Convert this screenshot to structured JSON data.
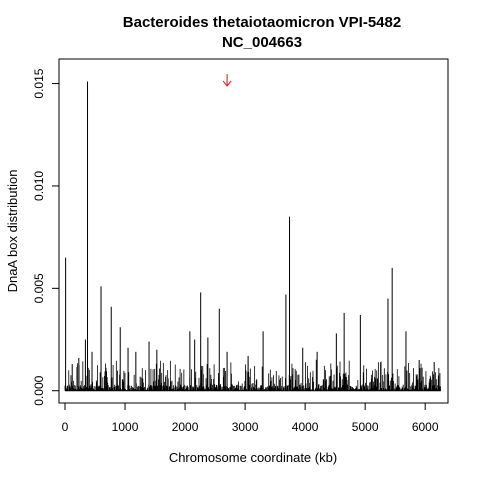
{
  "chart_data": {
    "type": "bar",
    "title": "Bacteroides thetaiotaomicron VPI-5482",
    "subtitle": "NC_004663",
    "xlabel": "Chromosome coordinate (kb)",
    "ylabel": "DnaA box distribution",
    "xlim": [
      -100,
      6380
    ],
    "ylim": [
      -0.0006,
      0.0162
    ],
    "x_ticks": [
      0,
      1000,
      2000,
      3000,
      4000,
      5000,
      6000
    ],
    "x_tick_labels": [
      "0",
      "1000",
      "2000",
      "3000",
      "4000",
      "5000",
      "6000"
    ],
    "y_ticks": [
      0.0,
      0.005,
      0.01,
      0.015
    ],
    "y_tick_labels": [
      "0.000",
      "0.005",
      "0.010",
      "0.015"
    ],
    "grid": false,
    "legend": "none",
    "origin_marker": {
      "x": 2700,
      "color": "#ff0000"
    },
    "spikes": [
      {
        "x": 10,
        "y": 0.0065
      },
      {
        "x": 120,
        "y": 0.0013
      },
      {
        "x": 230,
        "y": 0.0016
      },
      {
        "x": 340,
        "y": 0.0025
      },
      {
        "x": 375,
        "y": 0.0151
      },
      {
        "x": 450,
        "y": 0.0019
      },
      {
        "x": 600,
        "y": 0.0051
      },
      {
        "x": 770,
        "y": 0.0041
      },
      {
        "x": 920,
        "y": 0.0031
      },
      {
        "x": 1050,
        "y": 0.0021
      },
      {
        "x": 1180,
        "y": 0.0019
      },
      {
        "x": 1400,
        "y": 0.0024
      },
      {
        "x": 1530,
        "y": 0.002
      },
      {
        "x": 2080,
        "y": 0.0029
      },
      {
        "x": 2160,
        "y": 0.0025
      },
      {
        "x": 2260,
        "y": 0.0048
      },
      {
        "x": 2380,
        "y": 0.0026
      },
      {
        "x": 2570,
        "y": 0.004
      },
      {
        "x": 2700,
        "y": 0.0019
      },
      {
        "x": 3050,
        "y": 0.0017
      },
      {
        "x": 3300,
        "y": 0.0029
      },
      {
        "x": 3680,
        "y": 0.0047
      },
      {
        "x": 3740,
        "y": 0.0085
      },
      {
        "x": 3960,
        "y": 0.0021
      },
      {
        "x": 4200,
        "y": 0.0019
      },
      {
        "x": 4520,
        "y": 0.0028
      },
      {
        "x": 4650,
        "y": 0.0038
      },
      {
        "x": 4920,
        "y": 0.0037
      },
      {
        "x": 5380,
        "y": 0.0045
      },
      {
        "x": 5450,
        "y": 0.006
      },
      {
        "x": 5680,
        "y": 0.0029
      },
      {
        "x": 5900,
        "y": 0.0015
      },
      {
        "x": 6150,
        "y": 0.0014
      }
    ]
  }
}
